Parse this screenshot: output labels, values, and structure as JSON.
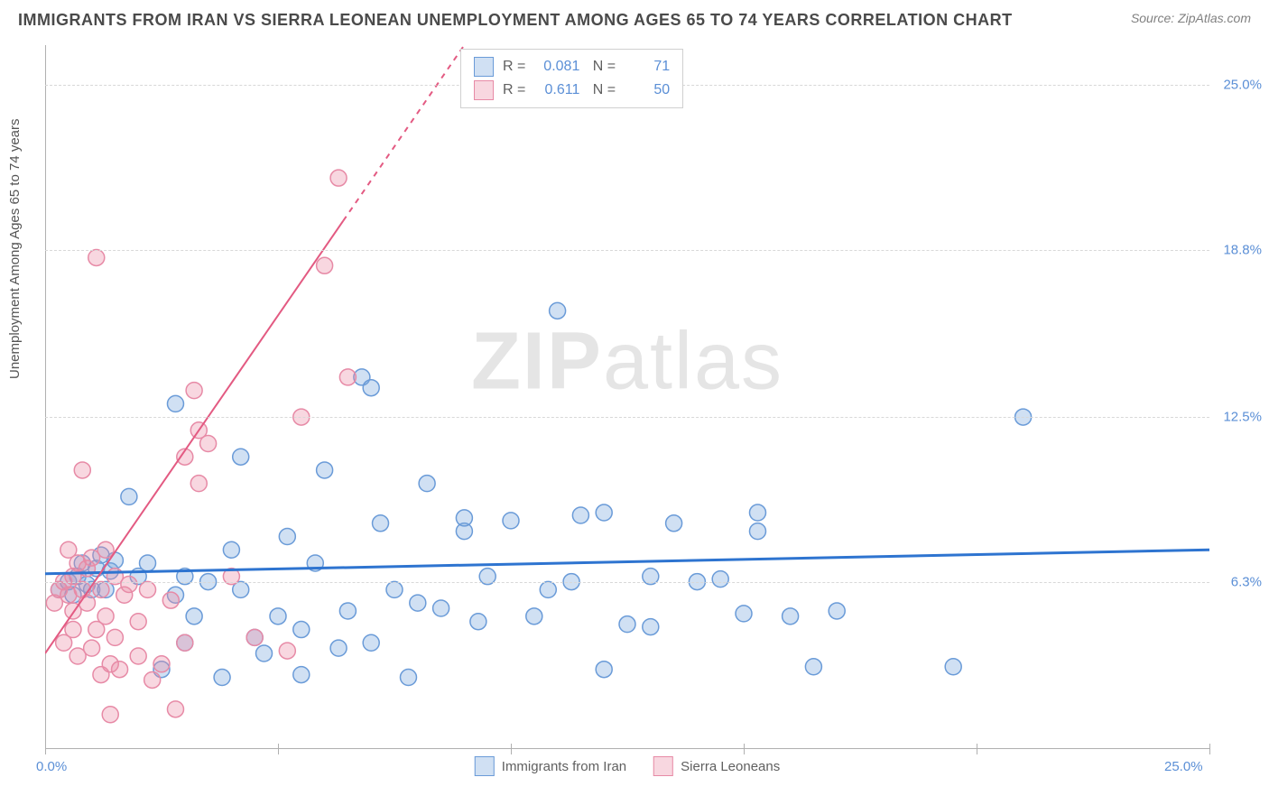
{
  "header": {
    "title": "IMMIGRANTS FROM IRAN VS SIERRA LEONEAN UNEMPLOYMENT AMONG AGES 65 TO 74 YEARS CORRELATION CHART",
    "source": "Source: ZipAtlas.com"
  },
  "watermark": {
    "bold": "ZIP",
    "light": "atlas"
  },
  "chart": {
    "type": "scatter",
    "y_axis_label": "Unemployment Among Ages 65 to 74 years",
    "xlim": [
      0,
      25
    ],
    "ylim": [
      0,
      26.5
    ],
    "x_ticks": [
      0,
      5,
      10,
      15,
      20,
      25
    ],
    "x_tick_labels": [
      "0.0%",
      "",
      "",
      "",
      "",
      "25.0%"
    ],
    "y_grid": [
      6.3,
      12.5,
      18.8,
      25.0
    ],
    "y_tick_labels": [
      "6.3%",
      "12.5%",
      "18.8%",
      "25.0%"
    ],
    "background_color": "#ffffff",
    "grid_color": "#d8d8d8",
    "axis_color": "#b0b0b0",
    "tick_label_color": "#5b8fd6",
    "series": [
      {
        "name": "Immigrants from Iran",
        "marker_fill": "rgba(120,165,220,0.35)",
        "marker_stroke": "#6a9bd8",
        "marker_radius": 9,
        "trend_color": "#2e74d0",
        "trend_width": 3,
        "r": "0.081",
        "n": "71",
        "trend": {
          "x1": 0,
          "y1": 6.6,
          "x2": 25,
          "y2": 7.5
        },
        "points": [
          [
            0.3,
            6.0
          ],
          [
            0.5,
            6.3
          ],
          [
            0.6,
            5.8
          ],
          [
            0.7,
            6.5
          ],
          [
            0.8,
            7.0
          ],
          [
            0.9,
            6.2
          ],
          [
            1.0,
            6.0
          ],
          [
            1.1,
            6.8
          ],
          [
            1.2,
            7.3
          ],
          [
            1.3,
            6.0
          ],
          [
            1.4,
            6.7
          ],
          [
            1.5,
            7.1
          ],
          [
            1.8,
            9.5
          ],
          [
            2.0,
            6.5
          ],
          [
            2.2,
            7.0
          ],
          [
            2.5,
            3.0
          ],
          [
            2.8,
            5.8
          ],
          [
            2.8,
            13.0
          ],
          [
            3.0,
            4.0
          ],
          [
            3.0,
            6.5
          ],
          [
            3.2,
            5.0
          ],
          [
            3.5,
            6.3
          ],
          [
            3.8,
            2.7
          ],
          [
            4.0,
            7.5
          ],
          [
            4.2,
            6.0
          ],
          [
            4.5,
            4.2
          ],
          [
            4.7,
            3.6
          ],
          [
            5.0,
            5.0
          ],
          [
            5.2,
            8.0
          ],
          [
            5.5,
            2.8
          ],
          [
            5.5,
            4.5
          ],
          [
            5.8,
            7.0
          ],
          [
            6.0,
            10.5
          ],
          [
            6.3,
            3.8
          ],
          [
            6.5,
            5.2
          ],
          [
            6.8,
            14.0
          ],
          [
            7.0,
            13.6
          ],
          [
            7.0,
            4.0
          ],
          [
            7.2,
            8.5
          ],
          [
            7.5,
            6.0
          ],
          [
            7.8,
            2.7
          ],
          [
            8.0,
            5.5
          ],
          [
            8.2,
            10.0
          ],
          [
            8.5,
            5.3
          ],
          [
            9.0,
            8.2
          ],
          [
            9.3,
            4.8
          ],
          [
            9.5,
            6.5
          ],
          [
            10.0,
            8.6
          ],
          [
            10.5,
            5.0
          ],
          [
            11.0,
            16.5
          ],
          [
            11.3,
            6.3
          ],
          [
            11.5,
            8.8
          ],
          [
            12.0,
            3.0
          ],
          [
            12.0,
            8.9
          ],
          [
            12.5,
            4.7
          ],
          [
            13.0,
            6.5
          ],
          [
            13.5,
            8.5
          ],
          [
            14.0,
            6.3
          ],
          [
            14.5,
            6.4
          ],
          [
            15.0,
            5.1
          ],
          [
            15.3,
            8.2
          ],
          [
            15.3,
            8.9
          ],
          [
            16.0,
            5.0
          ],
          [
            16.5,
            3.1
          ],
          [
            19.5,
            3.1
          ],
          [
            21.0,
            12.5
          ],
          [
            17.0,
            5.2
          ],
          [
            13.0,
            4.6
          ],
          [
            10.8,
            6.0
          ],
          [
            9.0,
            8.7
          ],
          [
            4.2,
            11.0
          ]
        ]
      },
      {
        "name": "Sierra Leoneans",
        "marker_fill": "rgba(235,140,165,0.35)",
        "marker_stroke": "#e78aa6",
        "marker_radius": 9,
        "trend_color": "#e35a82",
        "trend_width": 2,
        "trend_dash_from_x": 6.4,
        "r": "0.611",
        "n": "50",
        "trend": {
          "x1": 0,
          "y1": 3.6,
          "x2": 9.0,
          "y2": 26.5
        },
        "points": [
          [
            0.2,
            5.5
          ],
          [
            0.3,
            6.0
          ],
          [
            0.4,
            6.3
          ],
          [
            0.4,
            4.0
          ],
          [
            0.5,
            5.8
          ],
          [
            0.5,
            7.5
          ],
          [
            0.6,
            6.5
          ],
          [
            0.6,
            5.2
          ],
          [
            0.7,
            7.0
          ],
          [
            0.7,
            3.5
          ],
          [
            0.8,
            6.0
          ],
          [
            0.8,
            10.5
          ],
          [
            0.9,
            5.5
          ],
          [
            0.9,
            6.8
          ],
          [
            1.0,
            3.8
          ],
          [
            1.0,
            7.2
          ],
          [
            1.1,
            4.5
          ],
          [
            1.1,
            18.5
          ],
          [
            1.2,
            6.0
          ],
          [
            1.2,
            2.8
          ],
          [
            1.3,
            5.0
          ],
          [
            1.3,
            7.5
          ],
          [
            1.4,
            3.2
          ],
          [
            1.4,
            1.3
          ],
          [
            1.5,
            6.5
          ],
          [
            1.5,
            4.2
          ],
          [
            1.6,
            3.0
          ],
          [
            1.7,
            5.8
          ],
          [
            1.8,
            6.2
          ],
          [
            2.0,
            3.5
          ],
          [
            2.0,
            4.8
          ],
          [
            2.2,
            6.0
          ],
          [
            2.3,
            2.6
          ],
          [
            2.5,
            3.2
          ],
          [
            2.7,
            5.6
          ],
          [
            2.8,
            1.5
          ],
          [
            3.0,
            11.0
          ],
          [
            3.0,
            4.0
          ],
          [
            3.2,
            13.5
          ],
          [
            3.3,
            10.0
          ],
          [
            3.3,
            12.0
          ],
          [
            3.5,
            11.5
          ],
          [
            4.0,
            6.5
          ],
          [
            4.5,
            4.2
          ],
          [
            5.2,
            3.7
          ],
          [
            5.5,
            12.5
          ],
          [
            6.0,
            18.2
          ],
          [
            6.3,
            21.5
          ],
          [
            6.5,
            14.0
          ],
          [
            0.6,
            4.5
          ]
        ]
      }
    ],
    "legend_top": {
      "border_color": "#d0d0d0",
      "bg_color": "#ffffff"
    },
    "legend_bottom_labels": [
      "Immigrants from Iran",
      "Sierra Leoneans"
    ]
  }
}
